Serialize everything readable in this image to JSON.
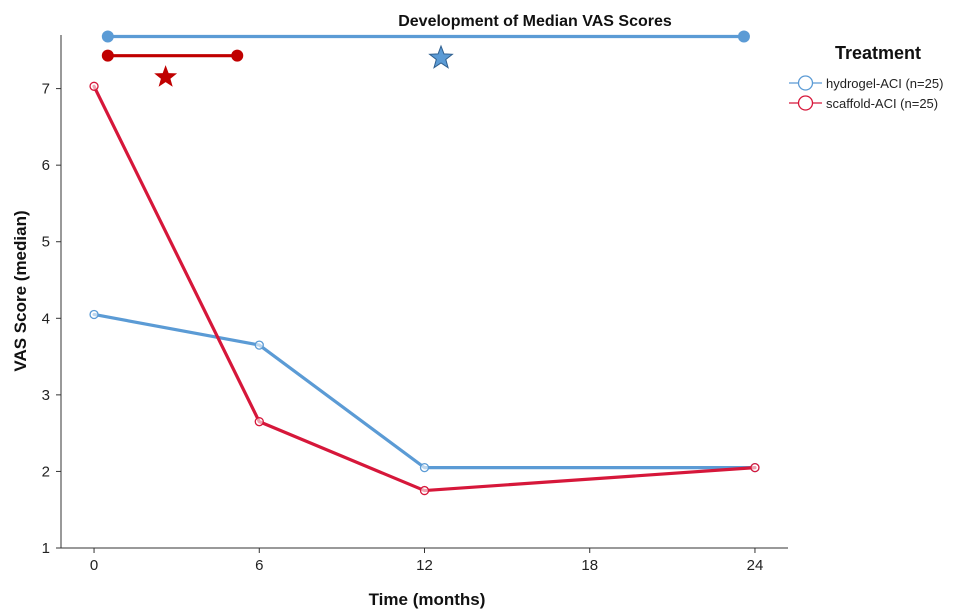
{
  "chart_data": {
    "type": "line",
    "title": "Development of Median VAS Scores",
    "xlabel": "Time (months)",
    "ylabel": "VAS Score (median)",
    "x": [
      0,
      6,
      12,
      24
    ],
    "x_ticks": [
      0,
      6,
      12,
      18,
      24
    ],
    "y_ticks": [
      1,
      2,
      3,
      4,
      5,
      6,
      7
    ],
    "xlim": [
      -1.2,
      25.2
    ],
    "ylim": [
      1,
      7.7
    ],
    "grid": false,
    "legend_title": "Treatment",
    "legend_position": "top-right",
    "series": [
      {
        "name": "hydrogel-ACI (n=25)",
        "color": "#5b9bd5",
        "values": [
          4.05,
          3.65,
          2.05,
          2.05
        ]
      },
      {
        "name": "scaffold-ACI (n=25)",
        "color": "#d6173a",
        "values": [
          7.03,
          2.65,
          1.75,
          2.05
        ]
      }
    ],
    "annotations": [
      {
        "kind": "significance-bar",
        "series": "hydrogel-ACI (n=25)",
        "color": "#5b9bd5",
        "from_x": 0.5,
        "to_x": 23.6,
        "y": 7.68,
        "star_x": 12.6,
        "star_y": 7.4
      },
      {
        "kind": "significance-bar",
        "series": "scaffold-ACI (n=25)",
        "color": "#c00000",
        "from_x": 0.5,
        "to_x": 5.2,
        "y": 7.43,
        "star_x": 2.6,
        "star_y": 7.15
      }
    ]
  }
}
